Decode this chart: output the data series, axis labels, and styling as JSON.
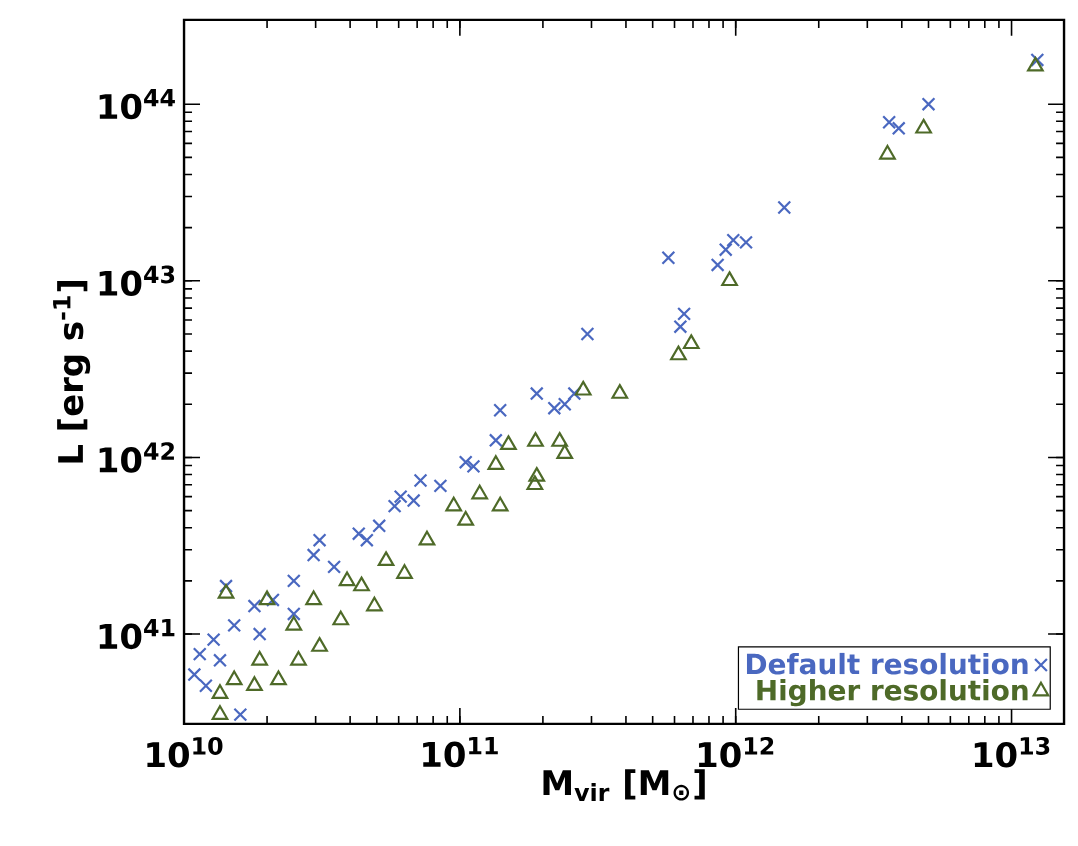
{
  "chart_data": {
    "type": "scatter",
    "xlabel": "M$_{vir}$ [M$_{⊙}$]",
    "ylabel": "L [erg s$^{-1}$]",
    "log": "xy",
    "grid": false,
    "legend": "bottom right",
    "xlim": [
      10000000000.0,
      15500000000000.0
    ],
    "ylim": [
      3.1e+40,
      3e+44
    ],
    "xticks": [
      {
        "value": 10000000000.0,
        "label": "10$^{10}$"
      },
      {
        "value": 100000000000.0,
        "label": "10$^{11}$"
      },
      {
        "value": 1000000000000.0,
        "label": "10$^{12}$"
      },
      {
        "value": 10000000000000.0,
        "label": "10$^{13}$"
      }
    ],
    "yticks": [
      {
        "value": 1e+41,
        "label": "10$^{41}$"
      },
      {
        "value": 1e+42,
        "label": "10$^{42}$"
      },
      {
        "value": 1e+43,
        "label": "10$^{43}$"
      },
      {
        "value": 1e+44,
        "label": "10$^{44}$"
      }
    ],
    "series": [
      {
        "name": "Default resolution",
        "color": "#4a68c0",
        "marker": "cross",
        "x": [
          12400000000000.0,
          3600000000000.0,
          3900000000000.0,
          5000000000000.0,
          1500000000000.0,
          570000000000.0,
          860000000000.0,
          920000000000.0,
          980000000000.0,
          1090000000000.0,
          650000000000.0,
          630000000000.0,
          290000000000.0,
          190000000000.0,
          220000000000.0,
          240000000000.0,
          260000000000.0,
          140000000000.0,
          135000000000.0,
          105000000000.0,
          14200000000.0,
          72000000000.0,
          112000000000.0,
          68000000000.0,
          51000000000.0,
          43000000000.0,
          31000000000.0,
          29500000000.0,
          25000000000.0,
          35000000000.0,
          21000000000.0,
          18000000000.0,
          15200000000.0,
          12800000000.0,
          11400000000.0,
          10900000000.0,
          12000000000.0,
          16000000000.0,
          85000000000.0,
          58000000000.0,
          46000000000.0,
          25000000000.0,
          13500000000.0,
          18800000000.0,
          61000000000.0
        ],
        "values": [
          1.78e+44,
          7.9e+43,
          7.3e+43,
          1e+44,
          2.6e+43,
          1.35e+43,
          1.23e+43,
          1.5e+43,
          1.7e+43,
          1.65e+43,
          6.5e+42,
          5.5e+42,
          5e+42,
          2.3e+42,
          1.9e+42,
          2e+42,
          2.3e+42,
          1.85e+42,
          1.25e+42,
          9.4e+41,
          1.87e+41,
          7.4e+41,
          8.9e+41,
          5.7e+41,
          4.1e+41,
          3.7e+41,
          3.4e+41,
          2.8e+41,
          2e+41,
          2.4e+41,
          1.56e+41,
          1.44e+41,
          1.12e+41,
          9.3e+40,
          7.7e+40,
          5.9e+40,
          5.1e+40,
          3.5e+40,
          6.9e+41,
          5.3e+41,
          3.4e+41,
          1.3e+41,
          7.1e+40,
          1e+41,
          6e+41
        ]
      },
      {
        "name": "Higher resolution",
        "color": "#4e6a28",
        "marker": "triangle",
        "x": [
          12200000000000.0,
          4800000000000.0,
          3550000000000.0,
          950000000000.0,
          690000000000.0,
          620000000000.0,
          380000000000.0,
          280000000000.0,
          188000000000.0,
          230000000000.0,
          240000000000.0,
          150000000000.0,
          135000000000.0,
          190000000000.0,
          187000000000.0,
          118000000000.0,
          14200000000.0,
          20000000000.0,
          95000000000.0,
          140000000000.0,
          105000000000.0,
          76000000000.0,
          63000000000.0,
          54000000000.0,
          44000000000.0,
          49000000000.0,
          31000000000.0,
          29500000000.0,
          25000000000.0,
          18800000000.0,
          15200000000.0,
          13500000000.0,
          13500000000.0,
          18000000000.0,
          22000000000.0,
          26000000000.0,
          37000000000.0,
          39000000000.0
        ],
        "values": [
          1.64e+44,
          7.3e+43,
          5.2e+43,
          1e+43,
          4.4e+42,
          3.8e+42,
          2.3e+42,
          2.4e+42,
          1.23e+42,
          1.23e+42,
          1.05e+42,
          1.18e+42,
          9.1e+41,
          7.8e+41,
          7e+41,
          6.2e+41,
          1.7e+41,
          1.56e+41,
          5.3e+41,
          5.3e+41,
          4.4e+41,
          3.4e+41,
          2.2e+41,
          2.6e+41,
          1.87e+41,
          1.44e+41,
          8.5e+40,
          1.56e+41,
          1.12e+41,
          7.1e+40,
          5.5e+40,
          4.6e+40,
          3.5e+40,
          5.1e+40,
          5.5e+40,
          7.1e+40,
          1.2e+41,
          2e+41
        ]
      }
    ]
  }
}
